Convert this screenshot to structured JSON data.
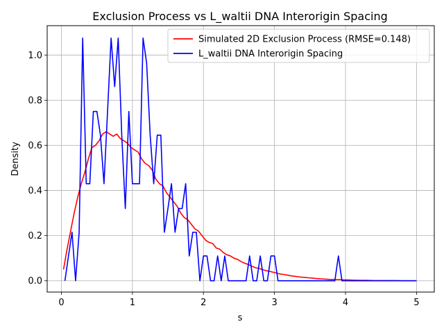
{
  "chart_data": {
    "type": "line",
    "title": "Exclusion Process vs L_waltii DNA Interorigin Spacing",
    "xlabel": "s",
    "ylabel": "Density",
    "xlim": [
      -0.2,
      5.25
    ],
    "ylim": [
      -0.05,
      1.13
    ],
    "xticks": [
      0,
      1,
      2,
      3,
      4,
      5
    ],
    "yticks": [
      0.0,
      0.2,
      0.4,
      0.6,
      0.8,
      1.0
    ],
    "xtick_labels": [
      "0",
      "1",
      "2",
      "3",
      "4",
      "5"
    ],
    "ytick_labels": [
      "0.0",
      "0.2",
      "0.4",
      "0.6",
      "0.8",
      "1.0"
    ],
    "grid": true,
    "legend_position": "top-right",
    "series": [
      {
        "name": "Simulated 2D Exclusion Process (RMSE=0.148)",
        "color": "#ff0000",
        "x": [
          0.03,
          0.08,
          0.13,
          0.18,
          0.23,
          0.28,
          0.33,
          0.38,
          0.43,
          0.48,
          0.53,
          0.58,
          0.63,
          0.68,
          0.73,
          0.78,
          0.83,
          0.88,
          0.93,
          0.98,
          1.03,
          1.08,
          1.13,
          1.18,
          1.23,
          1.28,
          1.33,
          1.38,
          1.43,
          1.48,
          1.53,
          1.58,
          1.63,
          1.68,
          1.73,
          1.78,
          1.83,
          1.88,
          1.93,
          1.98,
          2.03,
          2.08,
          2.13,
          2.18,
          2.23,
          2.28,
          2.33,
          2.38,
          2.43,
          2.48,
          2.53,
          2.58,
          2.63,
          2.68,
          2.73,
          2.78,
          2.83,
          2.88,
          2.93,
          2.98,
          3.03,
          3.08,
          3.13,
          3.18,
          3.23,
          3.28,
          3.33,
          3.38,
          3.43,
          3.48,
          3.53,
          3.58,
          3.63,
          3.68,
          3.73,
          3.78,
          3.83,
          3.88,
          3.93,
          3.98,
          4.03,
          4.1,
          4.2,
          4.3,
          4.4,
          4.5,
          4.6,
          4.7,
          4.8,
          4.9,
          5.0
        ],
        "y": [
          0.05,
          0.14,
          0.22,
          0.3,
          0.37,
          0.43,
          0.48,
          0.54,
          0.59,
          0.6,
          0.62,
          0.65,
          0.66,
          0.65,
          0.64,
          0.65,
          0.63,
          0.62,
          0.61,
          0.59,
          0.58,
          0.57,
          0.54,
          0.52,
          0.51,
          0.49,
          0.45,
          0.43,
          0.42,
          0.39,
          0.37,
          0.35,
          0.33,
          0.3,
          0.28,
          0.27,
          0.25,
          0.23,
          0.22,
          0.2,
          0.18,
          0.17,
          0.165,
          0.145,
          0.14,
          0.125,
          0.115,
          0.11,
          0.1,
          0.095,
          0.085,
          0.078,
          0.072,
          0.065,
          0.058,
          0.055,
          0.05,
          0.045,
          0.042,
          0.038,
          0.034,
          0.03,
          0.028,
          0.025,
          0.022,
          0.02,
          0.018,
          0.016,
          0.015,
          0.013,
          0.012,
          0.01,
          0.009,
          0.008,
          0.007,
          0.006,
          0.006,
          0.005,
          0.005,
          0.004,
          0.004,
          0.003,
          0.002,
          0.002,
          0.001,
          0.001,
          0.001,
          0.001,
          0.0,
          0.0,
          0.0
        ]
      },
      {
        "name": "L_waltii DNA Interorigin Spacing",
        "color": "#0000ff",
        "x": [
          0.05,
          0.1,
          0.15,
          0.2,
          0.25,
          0.3,
          0.35,
          0.4,
          0.45,
          0.5,
          0.55,
          0.6,
          0.65,
          0.7,
          0.75,
          0.8,
          0.85,
          0.9,
          0.95,
          1.0,
          1.05,
          1.1,
          1.15,
          1.2,
          1.25,
          1.3,
          1.35,
          1.4,
          1.45,
          1.5,
          1.55,
          1.6,
          1.65,
          1.7,
          1.75,
          1.8,
          1.85,
          1.9,
          1.95,
          2.0,
          2.05,
          2.1,
          2.15,
          2.2,
          2.25,
          2.3,
          2.35,
          2.4,
          2.45,
          2.5,
          2.55,
          2.6,
          2.65,
          2.7,
          2.75,
          2.8,
          2.85,
          2.9,
          2.95,
          3.0,
          3.05,
          3.1,
          3.2,
          3.3,
          3.4,
          3.5,
          3.6,
          3.7,
          3.8,
          3.85,
          3.9,
          3.95,
          4.0,
          4.2,
          4.4,
          4.6,
          4.8,
          5.0
        ],
        "y": [
          0.0,
          0.11,
          0.215,
          0.0,
          0.215,
          1.075,
          0.43,
          0.43,
          0.75,
          0.75,
          0.645,
          0.43,
          0.75,
          1.075,
          0.86,
          1.075,
          0.645,
          0.32,
          0.75,
          0.43,
          0.43,
          0.43,
          1.075,
          0.965,
          0.645,
          0.43,
          0.645,
          0.645,
          0.215,
          0.32,
          0.43,
          0.215,
          0.32,
          0.32,
          0.43,
          0.11,
          0.215,
          0.215,
          0.0,
          0.11,
          0.11,
          0.0,
          0.0,
          0.11,
          0.0,
          0.11,
          0.0,
          0.0,
          0.0,
          0.0,
          0.0,
          0.0,
          0.11,
          0.0,
          0.0,
          0.11,
          0.0,
          0.0,
          0.11,
          0.11,
          0.0,
          0.0,
          0.0,
          0.0,
          0.0,
          0.0,
          0.0,
          0.0,
          0.0,
          0.0,
          0.11,
          0.0,
          0.0,
          0.0,
          0.0,
          0.0,
          0.0,
          0.0
        ]
      }
    ]
  }
}
